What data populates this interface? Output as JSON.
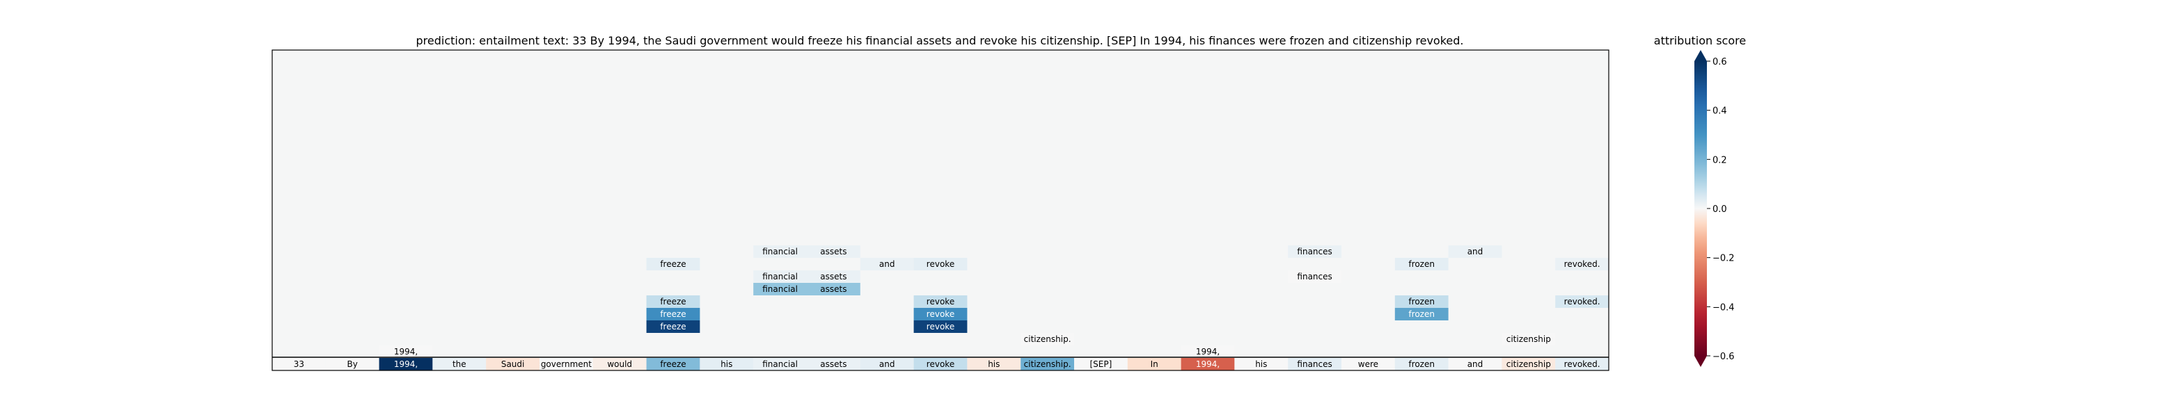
{
  "chart_data": {
    "type": "heatmap",
    "title": "prediction:  entailment     text:  33 By 1994, the Saudi government would freeze his financial assets and revoke his citizenship. [SEP] In 1994, his finances were frozen and citizenship revoked.",
    "tokens": [
      "33",
      "By",
      "1994,",
      "the",
      "Saudi",
      "government",
      "would",
      "freeze",
      "his",
      "financial",
      "assets",
      "and",
      "revoke",
      "his",
      "citizenship.",
      "[SEP]",
      "In",
      "1994,",
      "his",
      "finances",
      "were",
      "frozen",
      "and",
      "citizenship",
      "revoked."
    ],
    "token_scores": [
      0.0,
      0.0,
      0.6,
      0.02,
      -0.04,
      0.0,
      -0.02,
      0.18,
      0.03,
      0.02,
      0.02,
      0.03,
      0.08,
      -0.03,
      0.22,
      0.0,
      -0.05,
      -0.3,
      0.0,
      0.03,
      0.0,
      0.03,
      0.0,
      -0.03,
      0.03
    ],
    "attribution_rows": [
      {
        "row": 1,
        "cells": [
          {
            "col": 2,
            "token": "1994,",
            "score": 0.0
          },
          {
            "col": 17,
            "token": "1994,",
            "score": 0.0
          }
        ]
      },
      {
        "row": 2,
        "cells": [
          {
            "col": 14,
            "token": "citizenship.",
            "score": 0.0
          },
          {
            "col": 23,
            "token": "citizenship",
            "score": 0.0
          }
        ]
      },
      {
        "row": 3,
        "cells": [
          {
            "col": 7,
            "token": "freeze",
            "score": 0.55
          },
          {
            "col": 12,
            "token": "revoke",
            "score": 0.55
          }
        ]
      },
      {
        "row": 4,
        "cells": [
          {
            "col": 7,
            "token": "freeze",
            "score": 0.32
          },
          {
            "col": 12,
            "token": "revoke",
            "score": 0.32
          },
          {
            "col": 21,
            "token": "frozen",
            "score": 0.25
          }
        ]
      },
      {
        "row": 5,
        "cells": [
          {
            "col": 7,
            "token": "freeze",
            "score": 0.08
          },
          {
            "col": 12,
            "token": "revoke",
            "score": 0.08
          },
          {
            "col": 21,
            "token": "frozen",
            "score": 0.08
          },
          {
            "col": 24,
            "token": "revoked.",
            "score": 0.05
          }
        ]
      },
      {
        "row": 6,
        "cells": [
          {
            "col": 9,
            "token": "financial",
            "score": 0.15
          },
          {
            "col": 10,
            "token": "assets",
            "score": 0.15
          }
        ]
      },
      {
        "row": 7,
        "cells": [
          {
            "col": 9,
            "token": "financial",
            "score": 0.02
          },
          {
            "col": 10,
            "token": "assets",
            "score": 0.02
          },
          {
            "col": 19,
            "token": "finances",
            "score": 0.0
          }
        ]
      },
      {
        "row": 8,
        "cells": [
          {
            "col": 7,
            "token": "freeze",
            "score": 0.03
          },
          {
            "col": 11,
            "token": "and",
            "score": 0.02
          },
          {
            "col": 12,
            "token": "revoke",
            "score": 0.03
          },
          {
            "col": 21,
            "token": "frozen",
            "score": 0.03
          },
          {
            "col": 24,
            "token": "revoked.",
            "score": 0.02
          }
        ]
      },
      {
        "row": 9,
        "cells": [
          {
            "col": 9,
            "token": "financial",
            "score": 0.02
          },
          {
            "col": 10,
            "token": "assets",
            "score": 0.02
          },
          {
            "col": 19,
            "token": "finances",
            "score": 0.02
          },
          {
            "col": 22,
            "token": "and",
            "score": 0.02
          }
        ]
      }
    ],
    "colorbar": {
      "label": "attribution score",
      "range": [
        -0.6,
        0.6
      ],
      "ticks": [
        0.6,
        0.4,
        0.2,
        0.0,
        -0.2,
        -0.4,
        -0.6
      ],
      "tick_labels": [
        "0.6",
        "0.4",
        "0.2",
        "0.0",
        "−0.2",
        "−0.4",
        "−0.6"
      ],
      "colormap": "RdBu"
    },
    "background_color": "#f5f6f6",
    "grid": false
  }
}
